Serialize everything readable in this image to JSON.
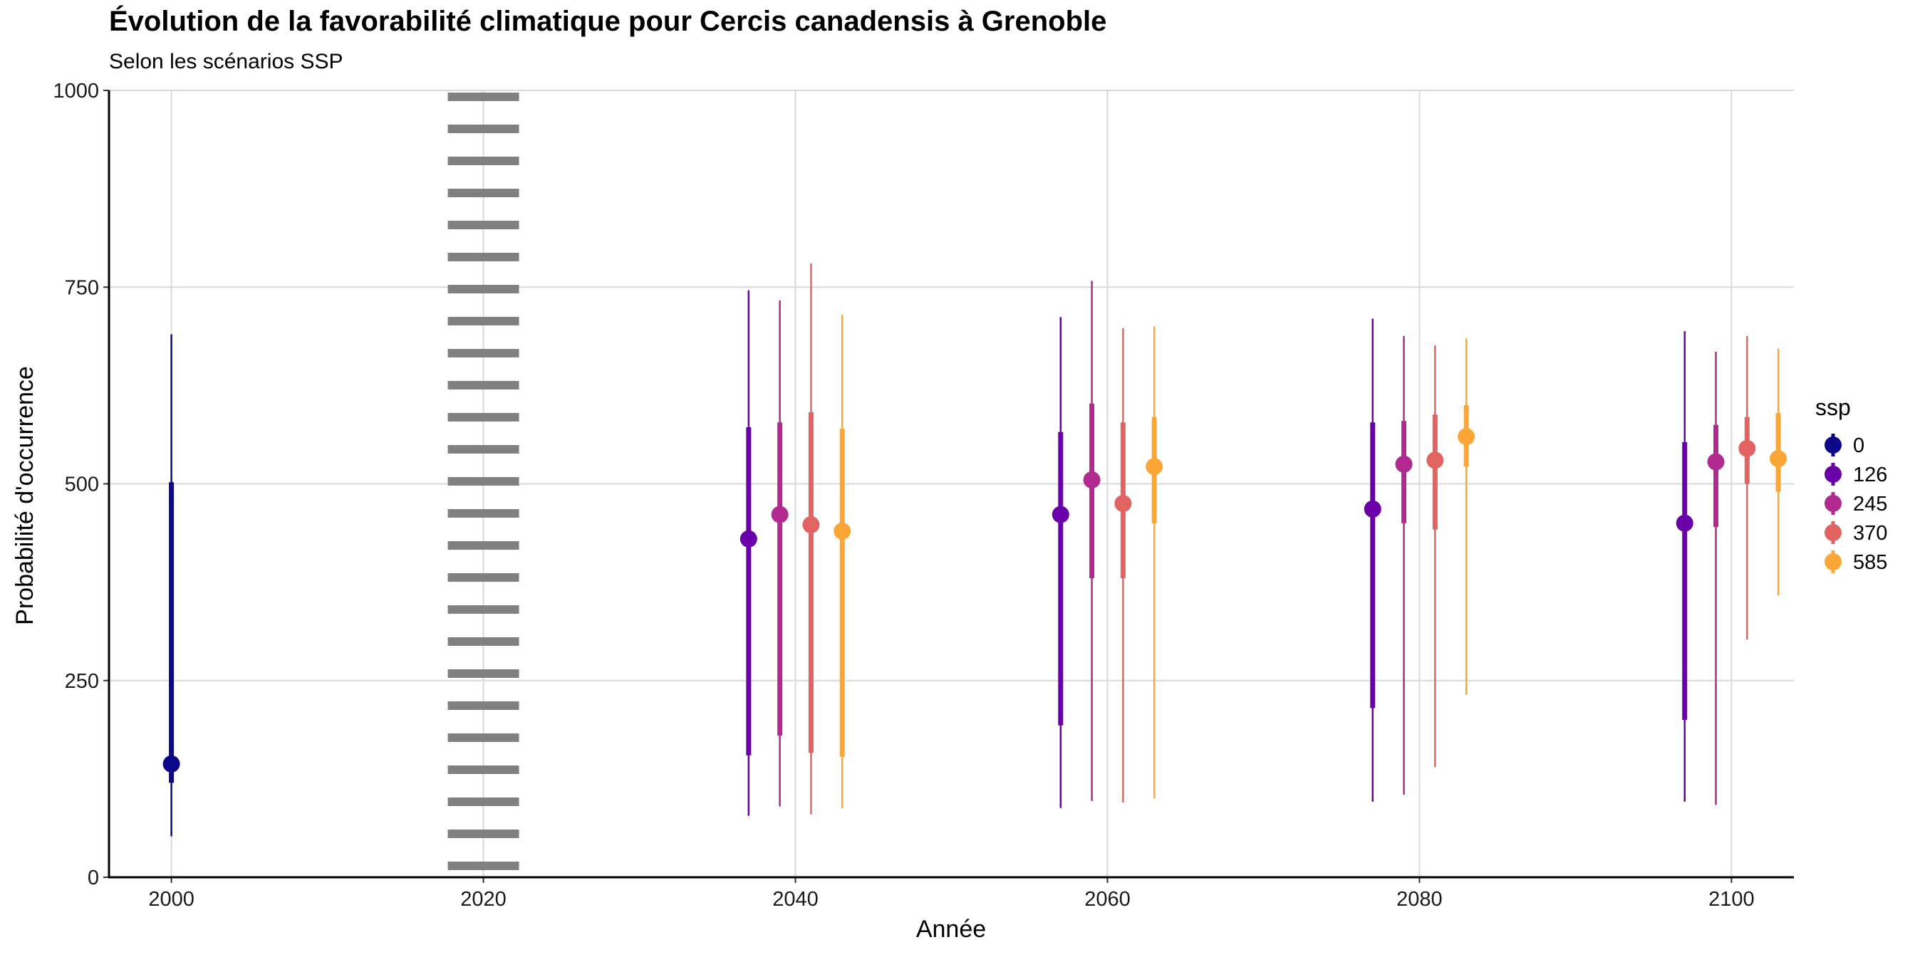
{
  "chart_data": {
    "type": "pointrange",
    "title": "Évolution de la favorabilité climatique pour Cercis canadensis à Grenoble",
    "subtitle": "Selon les scénarios SSP",
    "xlabel": "Année",
    "ylabel": "Probabilité d'occurrence",
    "xlim": [
      1996,
      2104
    ],
    "ylim": [
      0,
      1000
    ],
    "x_ticks": [
      "2000",
      "2020",
      "2040",
      "2060",
      "2080",
      "2100"
    ],
    "y_ticks": [
      "0",
      "250",
      "500",
      "750",
      "1000"
    ],
    "grid": true,
    "reference_line": {
      "x": 2020,
      "style": "dotted"
    },
    "legend": {
      "title": "ssp",
      "position": "right",
      "entries": [
        "0",
        "126",
        "245",
        "370",
        "585"
      ]
    },
    "series": [
      {
        "name": "0",
        "color": "#0d0887",
        "points": [
          {
            "x": 2000,
            "y": 144,
            "inner": [
              120,
              502
            ],
            "outer": [
              52,
              690
            ]
          }
        ]
      },
      {
        "name": "126",
        "color": "#6a00a8",
        "points": [
          {
            "x": 2037,
            "y": 430,
            "inner": [
              155,
              572
            ],
            "outer": [
              78,
              746
            ]
          },
          {
            "x": 2057,
            "y": 461,
            "inner": [
              193,
              566
            ],
            "outer": [
              88,
              712
            ]
          },
          {
            "x": 2077,
            "y": 468,
            "inner": [
              215,
              578
            ],
            "outer": [
              96,
              710
            ]
          },
          {
            "x": 2097,
            "y": 450,
            "inner": [
              200,
              553
            ],
            "outer": [
              96,
              694
            ]
          }
        ]
      },
      {
        "name": "245",
        "color": "#b12a90",
        "points": [
          {
            "x": 2039,
            "y": 461,
            "inner": [
              180,
              578
            ],
            "outer": [
              90,
              733
            ]
          },
          {
            "x": 2059,
            "y": 505,
            "inner": [
              380,
              602
            ],
            "outer": [
              97,
              758
            ]
          },
          {
            "x": 2079,
            "y": 525,
            "inner": [
              450,
              580
            ],
            "outer": [
              105,
              688
            ]
          },
          {
            "x": 2099,
            "y": 528,
            "inner": [
              445,
              575
            ],
            "outer": [
              92,
              668
            ]
          }
        ]
      },
      {
        "name": "370",
        "color": "#e16462",
        "points": [
          {
            "x": 2041,
            "y": 448,
            "inner": [
              158,
              591
            ],
            "outer": [
              80,
              780
            ]
          },
          {
            "x": 2061,
            "y": 475,
            "inner": [
              380,
              578
            ],
            "outer": [
              95,
              698
            ]
          },
          {
            "x": 2081,
            "y": 530,
            "inner": [
              442,
              588
            ],
            "outer": [
              140,
              676
            ]
          },
          {
            "x": 2101,
            "y": 545,
            "inner": [
              500,
              585
            ],
            "outer": [
              302,
              688
            ]
          }
        ]
      },
      {
        "name": "585",
        "color": "#fca636",
        "points": [
          {
            "x": 2043,
            "y": 440,
            "inner": [
              153,
              570
            ],
            "outer": [
              88,
              715
            ]
          },
          {
            "x": 2063,
            "y": 522,
            "inner": [
              450,
              585
            ],
            "outer": [
              100,
              700
            ]
          },
          {
            "x": 2083,
            "y": 560,
            "inner": [
              522,
              600
            ],
            "outer": [
              232,
              685
            ]
          },
          {
            "x": 2103,
            "y": 532,
            "inner": [
              490,
              590
            ],
            "outer": [
              358,
              672
            ]
          }
        ]
      }
    ]
  }
}
